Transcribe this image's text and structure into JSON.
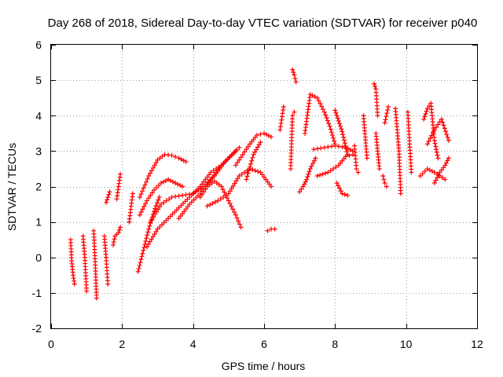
{
  "chart_data": {
    "type": "scatter",
    "title": "Day 268 of 2018, Sidereal Day-to-day VTEC variation (SDTVAR) for receiver p040",
    "xlabel": "GPS time / hours",
    "ylabel": "SDTVAR / TECUs",
    "xlim": [
      0,
      12
    ],
    "ylim": [
      -2,
      6
    ],
    "xticks": [
      0,
      2,
      4,
      6,
      8,
      10,
      12
    ],
    "yticks": [
      -2,
      -1,
      0,
      1,
      2,
      3,
      4,
      5,
      6
    ],
    "x_tick_labels": [
      "0",
      "2",
      "4",
      "6",
      "8",
      "10",
      "12"
    ],
    "y_tick_labels": [
      "-2",
      "-1",
      "0",
      "1",
      "2",
      "3",
      "4",
      "5",
      "6"
    ],
    "grid": true,
    "marker": "+",
    "color": "#ff0000",
    "traces": [
      {
        "x": [
          0.55,
          0.58,
          0.62,
          0.66
        ],
        "y": [
          0.5,
          -0.1,
          -0.5,
          -0.75
        ]
      },
      {
        "x": [
          0.9,
          0.95,
          1.0
        ],
        "y": [
          0.6,
          0.0,
          -0.95
        ]
      },
      {
        "x": [
          1.2,
          1.25,
          1.28
        ],
        "y": [
          0.75,
          -0.3,
          -1.15
        ]
      },
      {
        "x": [
          1.5,
          1.55,
          1.6
        ],
        "y": [
          0.6,
          0.0,
          -0.75
        ]
      },
      {
        "x": [
          1.55,
          1.65
        ],
        "y": [
          1.55,
          1.85
        ]
      },
      {
        "x": [
          1.75,
          1.8,
          1.9,
          1.95
        ],
        "y": [
          0.35,
          0.6,
          0.7,
          0.85
        ]
      },
      {
        "x": [
          1.85,
          1.9,
          1.95
        ],
        "y": [
          1.65,
          2.0,
          2.35
        ]
      },
      {
        "x": [
          2.2,
          2.3
        ],
        "y": [
          1.0,
          1.8
        ]
      },
      {
        "x": [
          2.45,
          2.6,
          2.75,
          2.9,
          3.05
        ],
        "y": [
          -0.4,
          0.2,
          0.8,
          1.3,
          1.7
        ]
      },
      {
        "x": [
          2.5,
          2.7,
          2.9,
          3.1,
          3.3,
          3.5,
          3.7
        ],
        "y": [
          1.2,
          1.6,
          1.9,
          2.1,
          2.2,
          2.1,
          2.0
        ]
      },
      {
        "x": [
          2.7,
          3.0,
          3.3,
          3.6,
          3.9,
          4.2,
          4.5,
          4.8
        ],
        "y": [
          0.3,
          0.8,
          1.1,
          1.4,
          1.7,
          2.0,
          2.4,
          2.6
        ]
      },
      {
        "x": [
          2.5,
          2.75,
          3.0,
          3.2,
          3.4,
          3.6,
          3.8
        ],
        "y": [
          1.7,
          2.3,
          2.75,
          2.9,
          2.88,
          2.8,
          2.7
        ]
      },
      {
        "x": [
          2.8,
          3.1,
          3.4,
          3.7,
          4.0,
          4.3,
          4.6,
          4.9,
          5.2
        ],
        "y": [
          1.0,
          1.5,
          1.7,
          1.75,
          1.8,
          2.0,
          2.3,
          2.7,
          3.0
        ]
      },
      {
        "x": [
          3.6,
          3.9,
          4.2,
          4.5,
          4.8,
          5.1,
          5.3
        ],
        "y": [
          1.1,
          1.5,
          1.8,
          2.2,
          2.6,
          2.9,
          3.1
        ]
      },
      {
        "x": [
          4.2,
          4.4,
          4.6,
          4.8,
          5.0,
          5.2,
          5.35
        ],
        "y": [
          1.7,
          2.0,
          2.15,
          2.0,
          1.6,
          1.2,
          0.85
        ]
      },
      {
        "x": [
          4.4,
          4.7,
          5.0,
          5.3,
          5.6,
          5.9,
          6.2
        ],
        "y": [
          1.45,
          1.6,
          1.8,
          2.3,
          2.5,
          2.4,
          2.0
        ]
      },
      {
        "x": [
          5.2,
          5.4,
          5.6,
          5.8,
          6.0,
          6.2
        ],
        "y": [
          2.6,
          2.9,
          3.2,
          3.45,
          3.5,
          3.4
        ]
      },
      {
        "x": [
          5.5,
          5.7,
          5.9
        ],
        "y": [
          2.2,
          2.9,
          3.25
        ]
      },
      {
        "x": [
          6.1,
          6.2,
          6.3
        ],
        "y": [
          0.75,
          0.8,
          0.8
        ]
      },
      {
        "x": [
          6.45,
          6.55
        ],
        "y": [
          3.6,
          4.25
        ]
      },
      {
        "x": [
          6.75,
          6.8,
          6.85
        ],
        "y": [
          2.5,
          4.0,
          4.1
        ]
      },
      {
        "x": [
          6.8,
          6.85,
          6.9
        ],
        "y": [
          5.3,
          5.15,
          4.95
        ]
      },
      {
        "x": [
          7.0,
          7.1,
          7.2,
          7.3,
          7.45
        ],
        "y": [
          1.85,
          2.0,
          2.2,
          2.5,
          2.8
        ]
      },
      {
        "x": [
          7.15,
          7.3,
          7.5,
          7.7,
          7.85,
          8.0
        ],
        "y": [
          3.5,
          4.6,
          4.5,
          4.1,
          3.7,
          3.2
        ]
      },
      {
        "x": [
          7.5,
          7.8,
          8.1,
          8.3,
          8.5
        ],
        "y": [
          2.3,
          2.4,
          2.6,
          2.85,
          2.9
        ]
      },
      {
        "x": [
          7.4,
          7.7,
          8.0,
          8.3,
          8.5
        ],
        "y": [
          3.05,
          3.1,
          3.15,
          3.1,
          3.0
        ]
      },
      {
        "x": [
          8.0,
          8.1,
          8.2,
          8.35
        ],
        "y": [
          4.15,
          3.85,
          3.55,
          2.9
        ]
      },
      {
        "x": [
          8.05,
          8.2,
          8.35
        ],
        "y": [
          2.1,
          1.8,
          1.75
        ]
      },
      {
        "x": [
          8.55,
          8.6,
          8.65
        ],
        "y": [
          3.15,
          2.5,
          2.4
        ]
      },
      {
        "x": [
          8.8,
          8.85,
          8.9
        ],
        "y": [
          4.0,
          3.4,
          2.8
        ]
      },
      {
        "x": [
          9.1,
          9.15,
          9.2
        ],
        "y": [
          4.9,
          4.75,
          4.0
        ]
      },
      {
        "x": [
          9.15,
          9.2,
          9.25
        ],
        "y": [
          3.5,
          3.0,
          2.5
        ]
      },
      {
        "x": [
          9.35,
          9.4,
          9.45
        ],
        "y": [
          2.3,
          2.1,
          2.0
        ]
      },
      {
        "x": [
          9.4,
          9.5
        ],
        "y": [
          3.8,
          4.25
        ]
      },
      {
        "x": [
          9.7,
          9.8,
          9.85
        ],
        "y": [
          4.2,
          3.0,
          1.8
        ]
      },
      {
        "x": [
          10.05,
          10.1,
          10.15
        ],
        "y": [
          4.1,
          3.2,
          2.4
        ]
      },
      {
        "x": [
          10.4,
          10.6,
          10.8,
          10.95,
          11.1
        ],
        "y": [
          2.3,
          2.5,
          2.4,
          2.3,
          2.2
        ]
      },
      {
        "x": [
          10.5,
          10.6,
          10.7,
          10.8,
          10.9
        ],
        "y": [
          3.9,
          4.2,
          4.35,
          3.3,
          2.8
        ]
      },
      {
        "x": [
          10.6,
          10.8,
          11.0,
          11.2
        ],
        "y": [
          3.2,
          3.6,
          3.9,
          3.3
        ]
      },
      {
        "x": [
          10.8,
          10.95,
          11.1,
          11.2
        ],
        "y": [
          2.1,
          2.4,
          2.6,
          2.8
        ]
      }
    ]
  }
}
